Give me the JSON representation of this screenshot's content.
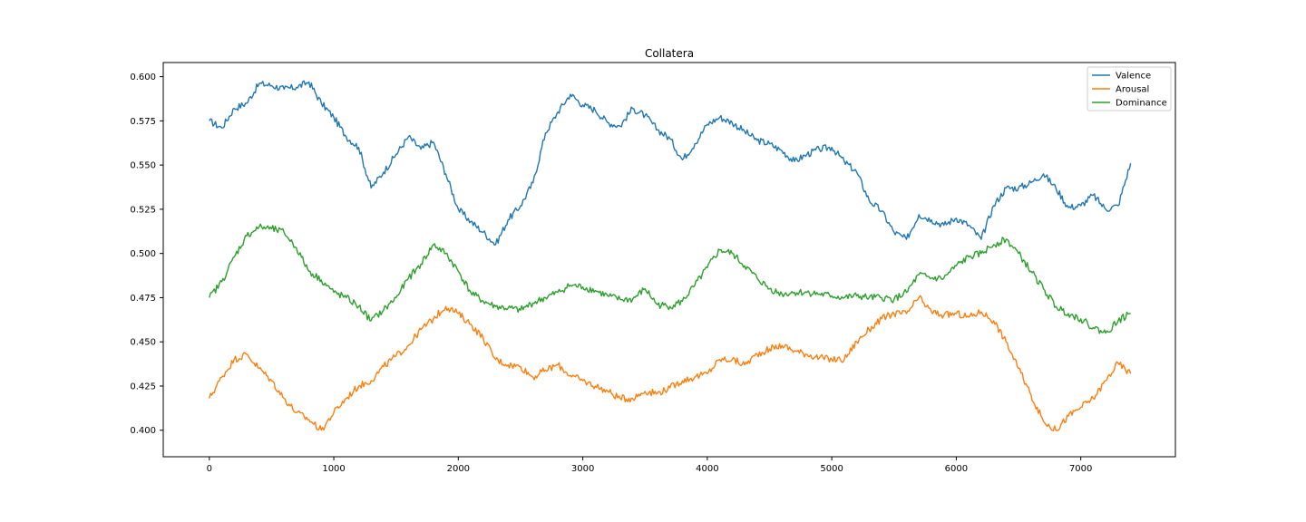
{
  "chart_data": {
    "type": "line",
    "title": "Collatera",
    "xlabel": "",
    "ylabel": "",
    "xlim": [
      -370,
      7760
    ],
    "ylim": [
      0.385,
      0.608
    ],
    "xticks": [
      0,
      1000,
      2000,
      3000,
      4000,
      5000,
      6000,
      7000
    ],
    "xtick_labels": [
      "0",
      "1000",
      "2000",
      "3000",
      "4000",
      "5000",
      "6000",
      "7000"
    ],
    "yticks": [
      0.4,
      0.425,
      0.45,
      0.475,
      0.5,
      0.525,
      0.55,
      0.575,
      0.6
    ],
    "ytick_labels": [
      "0.400",
      "0.425",
      "0.450",
      "0.475",
      "0.500",
      "0.525",
      "0.550",
      "0.575",
      "0.600"
    ],
    "grid": false,
    "legend_position": "top-right",
    "series": [
      {
        "name": "Valence",
        "color": "#1f77b4",
        "x": [
          0,
          100,
          200,
          300,
          400,
          500,
          600,
          700,
          800,
          900,
          1000,
          1100,
          1200,
          1300,
          1400,
          1500,
          1600,
          1700,
          1800,
          1900,
          2000,
          2100,
          2200,
          2300,
          2400,
          2500,
          2600,
          2700,
          2800,
          2900,
          3000,
          3100,
          3200,
          3300,
          3400,
          3500,
          3600,
          3700,
          3800,
          3900,
          4000,
          4100,
          4200,
          4300,
          4400,
          4500,
          4600,
          4700,
          4800,
          4900,
          5000,
          5100,
          5200,
          5300,
          5400,
          5500,
          5600,
          5700,
          5800,
          5900,
          6000,
          6100,
          6200,
          6300,
          6400,
          6500,
          6600,
          6700,
          6800,
          6900,
          7000,
          7100,
          7200,
          7300,
          7400
        ],
        "y": [
          0.575,
          0.571,
          0.582,
          0.585,
          0.596,
          0.595,
          0.593,
          0.594,
          0.597,
          0.585,
          0.577,
          0.566,
          0.56,
          0.537,
          0.546,
          0.556,
          0.566,
          0.559,
          0.563,
          0.545,
          0.525,
          0.518,
          0.512,
          0.505,
          0.519,
          0.527,
          0.54,
          0.568,
          0.58,
          0.59,
          0.584,
          0.581,
          0.574,
          0.572,
          0.582,
          0.578,
          0.57,
          0.565,
          0.553,
          0.562,
          0.573,
          0.577,
          0.574,
          0.569,
          0.564,
          0.562,
          0.558,
          0.552,
          0.556,
          0.559,
          0.56,
          0.552,
          0.546,
          0.53,
          0.524,
          0.512,
          0.508,
          0.522,
          0.519,
          0.516,
          0.52,
          0.516,
          0.508,
          0.527,
          0.537,
          0.537,
          0.54,
          0.545,
          0.537,
          0.526,
          0.527,
          0.533,
          0.525,
          0.527,
          0.551
        ]
      },
      {
        "name": "Arousal",
        "color": "#ff7f0e",
        "x": [
          0,
          100,
          200,
          300,
          400,
          500,
          600,
          700,
          800,
          900,
          1000,
          1100,
          1200,
          1300,
          1400,
          1500,
          1600,
          1700,
          1800,
          1900,
          2000,
          2100,
          2200,
          2300,
          2400,
          2500,
          2600,
          2700,
          2800,
          2900,
          3000,
          3100,
          3200,
          3300,
          3400,
          3500,
          3600,
          3700,
          3800,
          3900,
          4000,
          4100,
          4200,
          4300,
          4400,
          4500,
          4600,
          4700,
          4800,
          4900,
          5000,
          5100,
          5200,
          5300,
          5400,
          5500,
          5600,
          5700,
          5800,
          5900,
          6000,
          6100,
          6200,
          6300,
          6400,
          6500,
          6600,
          6700,
          6800,
          6900,
          7000,
          7100,
          7200,
          7300,
          7400
        ],
        "y": [
          0.418,
          0.43,
          0.44,
          0.443,
          0.435,
          0.428,
          0.418,
          0.41,
          0.406,
          0.4,
          0.41,
          0.418,
          0.425,
          0.428,
          0.436,
          0.442,
          0.448,
          0.457,
          0.463,
          0.47,
          0.466,
          0.46,
          0.452,
          0.44,
          0.437,
          0.436,
          0.43,
          0.434,
          0.437,
          0.431,
          0.428,
          0.425,
          0.422,
          0.418,
          0.418,
          0.422,
          0.421,
          0.424,
          0.428,
          0.43,
          0.432,
          0.44,
          0.44,
          0.437,
          0.443,
          0.446,
          0.448,
          0.445,
          0.443,
          0.441,
          0.44,
          0.44,
          0.45,
          0.457,
          0.463,
          0.466,
          0.466,
          0.475,
          0.467,
          0.465,
          0.466,
          0.464,
          0.467,
          0.462,
          0.45,
          0.435,
          0.42,
          0.405,
          0.4,
          0.408,
          0.413,
          0.418,
          0.428,
          0.438,
          0.432
        ]
      },
      {
        "name": "Dominance",
        "color": "#2ca02c",
        "x": [
          0,
          100,
          200,
          300,
          400,
          500,
          600,
          700,
          800,
          900,
          1000,
          1100,
          1200,
          1300,
          1400,
          1500,
          1600,
          1700,
          1800,
          1900,
          2000,
          2100,
          2200,
          2300,
          2400,
          2500,
          2600,
          2700,
          2800,
          2900,
          3000,
          3100,
          3200,
          3300,
          3400,
          3500,
          3600,
          3700,
          3800,
          3900,
          4000,
          4100,
          4200,
          4300,
          4400,
          4500,
          4600,
          4700,
          4800,
          4900,
          5000,
          5100,
          5200,
          5300,
          5400,
          5500,
          5600,
          5700,
          5800,
          5900,
          6000,
          6100,
          6200,
          6300,
          6400,
          6500,
          6600,
          6700,
          6800,
          6900,
          7000,
          7100,
          7200,
          7300,
          7400
        ],
        "y": [
          0.475,
          0.484,
          0.498,
          0.51,
          0.515,
          0.514,
          0.512,
          0.503,
          0.49,
          0.485,
          0.478,
          0.475,
          0.47,
          0.462,
          0.468,
          0.475,
          0.486,
          0.494,
          0.505,
          0.5,
          0.49,
          0.478,
          0.473,
          0.47,
          0.469,
          0.468,
          0.472,
          0.475,
          0.478,
          0.482,
          0.481,
          0.479,
          0.476,
          0.474,
          0.474,
          0.48,
          0.471,
          0.47,
          0.473,
          0.482,
          0.492,
          0.502,
          0.5,
          0.493,
          0.486,
          0.48,
          0.477,
          0.478,
          0.478,
          0.477,
          0.476,
          0.475,
          0.476,
          0.475,
          0.475,
          0.474,
          0.478,
          0.488,
          0.486,
          0.486,
          0.493,
          0.498,
          0.5,
          0.505,
          0.508,
          0.5,
          0.49,
          0.48,
          0.47,
          0.466,
          0.463,
          0.458,
          0.455,
          0.462,
          0.466
        ]
      }
    ]
  }
}
